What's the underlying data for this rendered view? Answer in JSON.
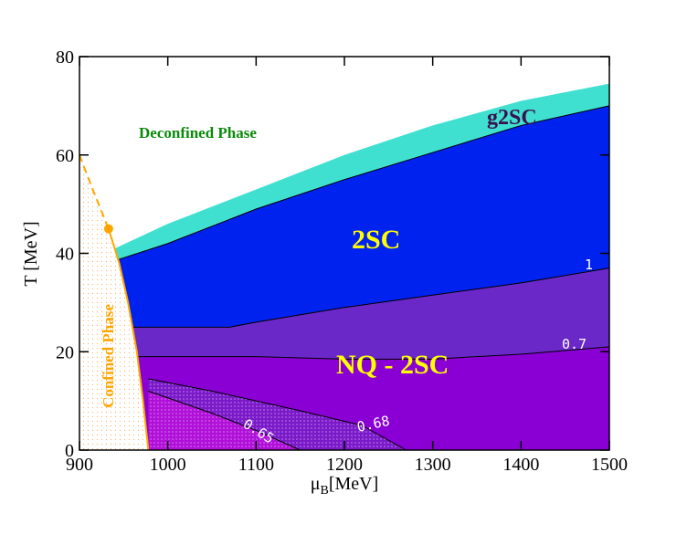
{
  "chart_data": {
    "type": "phase",
    "x_label": {
      "symbol": "μ",
      "sub": "B",
      "unit": "[MeV]"
    },
    "y_label": "T [MeV]",
    "xlim": [
      900,
      1500
    ],
    "xticks": [
      900,
      1000,
      1100,
      1200,
      1300,
      1400,
      1500
    ],
    "ylim": [
      0,
      80
    ],
    "yticks": [
      0,
      20,
      40,
      60,
      80
    ],
    "regions": [
      {
        "color": "#40e0d0",
        "stroke": "none",
        "pattern": false,
        "x": [
          940,
          1000,
          1100,
          1200,
          1300,
          1400,
          1500
        ],
        "y": [
          41,
          46,
          53,
          60,
          66,
          71,
          74.5
        ]
      },
      {
        "color": "#0022ee",
        "stroke": "#000000",
        "pattern": false,
        "x": [
          940,
          1000,
          1100,
          1200,
          1300,
          1400,
          1500
        ],
        "y": [
          38.5,
          42,
          49,
          55,
          60.5,
          66,
          70
        ]
      },
      {
        "color": "#6a28c8",
        "stroke": "#000000",
        "pattern": false,
        "x": [
          948,
          1070,
          1100,
          1200,
          1300,
          1400,
          1500
        ],
        "y": [
          25,
          25,
          26,
          29,
          31.5,
          34,
          37
        ]
      },
      {
        "color": "#8a00d4",
        "stroke": "#000000",
        "pattern": false,
        "x": [
          965,
          1100,
          1200,
          1300,
          1400,
          1500
        ],
        "y": [
          19,
          19,
          18.5,
          18.5,
          19.5,
          21
        ]
      },
      {
        "color": "#7a1ac8",
        "stroke": "#000000",
        "pattern": true,
        "x": [
          978,
          1050,
          1150,
          1220,
          1270
        ],
        "y": [
          14.5,
          12,
          8,
          5,
          0
        ]
      },
      {
        "color": "#b010d8",
        "stroke": "#000000",
        "pattern": true,
        "x": [
          978,
          1050,
          1100,
          1150
        ],
        "y": [
          12,
          7.5,
          4,
          0
        ]
      }
    ],
    "confined": {
      "color": "#ffa500",
      "dashed": {
        "x": [
          900,
          915,
          933
        ],
        "y": [
          60,
          53,
          45
        ]
      },
      "solid": {
        "x": [
          933,
          945,
          955,
          965,
          972,
          978
        ],
        "y": [
          45,
          38,
          30,
          20,
          10,
          0
        ]
      },
      "point": {
        "x": 933,
        "y": 45
      }
    },
    "labels": {
      "deconfined": "Deconfined Phase",
      "g2sc": "g2SC",
      "twosc": "2SC",
      "nq": "NQ - 2SC",
      "confined": "Confined Phase",
      "c1": "1",
      "c07": "0.7",
      "c068": "0.68",
      "c065": "0.65"
    }
  }
}
